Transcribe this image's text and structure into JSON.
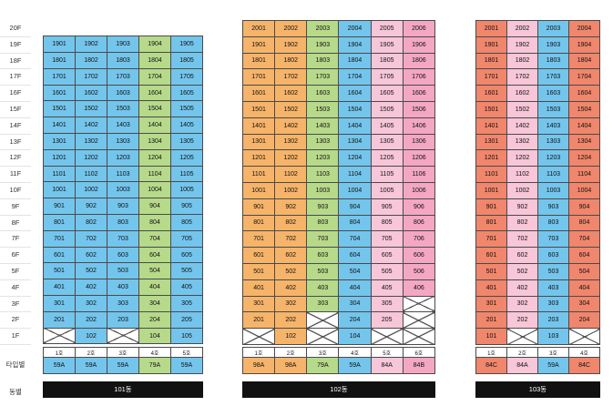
{
  "floors": [
    "20F",
    "19F",
    "18F",
    "17F",
    "16F",
    "15F",
    "14F",
    "13F",
    "12F",
    "11F",
    "10F",
    "9F",
    "8F",
    "7F",
    "6F",
    "5F",
    "4F",
    "3F",
    "2F",
    "1F"
  ],
  "side_labels": {
    "type": "타입별",
    "building": "동별"
  },
  "colors": {
    "blue": "#74c5ec",
    "green": "#b7d98a",
    "orange": "#f6b46a",
    "pink": "#f4a7c2",
    "light_pink": "#f7c6d8",
    "coral": "#f0866c",
    "bar": "#111111"
  },
  "buildings": [
    {
      "name": "101동",
      "ho": [
        "1호",
        "2호",
        "3호",
        "4호",
        "5호"
      ],
      "types": [
        "59A",
        "59A",
        "59A",
        "79A",
        "59A"
      ],
      "unit_colors": [
        "blue",
        "blue",
        "blue",
        "green",
        "blue"
      ],
      "rows": [
        {
          "floor": "20F",
          "units": [
            null,
            null,
            null,
            null,
            null
          ],
          "hidden": true
        },
        {
          "floor": "19F",
          "units": [
            "1901",
            "1902",
            "1903",
            "1904",
            "1905"
          ]
        },
        {
          "floor": "18F",
          "units": [
            "1801",
            "1802",
            "1803",
            "1804",
            "1805"
          ]
        },
        {
          "floor": "17F",
          "units": [
            "1701",
            "1702",
            "1703",
            "1704",
            "1705"
          ]
        },
        {
          "floor": "16F",
          "units": [
            "1601",
            "1602",
            "1603",
            "1604",
            "1605"
          ]
        },
        {
          "floor": "15F",
          "units": [
            "1501",
            "1502",
            "1503",
            "1504",
            "1505"
          ]
        },
        {
          "floor": "14F",
          "units": [
            "1401",
            "1402",
            "1403",
            "1404",
            "1405"
          ]
        },
        {
          "floor": "13F",
          "units": [
            "1301",
            "1302",
            "1303",
            "1304",
            "1305"
          ]
        },
        {
          "floor": "12F",
          "units": [
            "1201",
            "1202",
            "1203",
            "1204",
            "1205"
          ]
        },
        {
          "floor": "11F",
          "units": [
            "1101",
            "1102",
            "1103",
            "1104",
            "1105"
          ]
        },
        {
          "floor": "10F",
          "units": [
            "1001",
            "1002",
            "1003",
            "1004",
            "1005"
          ]
        },
        {
          "floor": "9F",
          "units": [
            "901",
            "902",
            "903",
            "904",
            "905"
          ]
        },
        {
          "floor": "8F",
          "units": [
            "801",
            "802",
            "803",
            "804",
            "805"
          ]
        },
        {
          "floor": "7F",
          "units": [
            "701",
            "702",
            "703",
            "704",
            "705"
          ]
        },
        {
          "floor": "6F",
          "units": [
            "601",
            "602",
            "603",
            "604",
            "605"
          ]
        },
        {
          "floor": "5F",
          "units": [
            "501",
            "502",
            "503",
            "504",
            "505"
          ]
        },
        {
          "floor": "4F",
          "units": [
            "401",
            "402",
            "403",
            "404",
            "405"
          ]
        },
        {
          "floor": "3F",
          "units": [
            "301",
            "302",
            "303",
            "304",
            "305"
          ]
        },
        {
          "floor": "2F",
          "units": [
            "201",
            "202",
            "203",
            "204",
            "205"
          ]
        },
        {
          "floor": "1F",
          "units": [
            "X",
            "102",
            "X",
            "104",
            "105"
          ]
        }
      ]
    },
    {
      "name": "102동",
      "ho": [
        "1호",
        "2호",
        "3호",
        "4호",
        "5호",
        "6호"
      ],
      "types": [
        "98A",
        "98A",
        "79A",
        "59A",
        "84A",
        "84B"
      ],
      "unit_colors": [
        "orange",
        "orange",
        "green",
        "blue",
        "lpink",
        "pink"
      ],
      "rows": [
        {
          "floor": "20F",
          "units": [
            "2001",
            "2002",
            "2003",
            "2004",
            "2005",
            "2006"
          ]
        },
        {
          "floor": "19F",
          "units": [
            "1901",
            "1902",
            "1903",
            "1904",
            "1905",
            "1906"
          ]
        },
        {
          "floor": "18F",
          "units": [
            "1801",
            "1802",
            "1803",
            "1804",
            "1805",
            "1806"
          ]
        },
        {
          "floor": "17F",
          "units": [
            "1701",
            "1702",
            "1703",
            "1704",
            "1705",
            "1706"
          ]
        },
        {
          "floor": "16F",
          "units": [
            "1601",
            "1602",
            "1603",
            "1604",
            "1605",
            "1606"
          ]
        },
        {
          "floor": "15F",
          "units": [
            "1501",
            "1502",
            "1503",
            "1504",
            "1505",
            "1506"
          ]
        },
        {
          "floor": "14F",
          "units": [
            "1401",
            "1402",
            "1403",
            "1404",
            "1405",
            "1406"
          ]
        },
        {
          "floor": "13F",
          "units": [
            "1301",
            "1302",
            "1303",
            "1304",
            "1305",
            "1306"
          ]
        },
        {
          "floor": "12F",
          "units": [
            "1201",
            "1202",
            "1203",
            "1204",
            "1205",
            "1206"
          ]
        },
        {
          "floor": "11F",
          "units": [
            "1101",
            "1102",
            "1103",
            "1104",
            "1105",
            "1106"
          ]
        },
        {
          "floor": "10F",
          "units": [
            "1001",
            "1002",
            "1003",
            "1004",
            "1005",
            "1006"
          ]
        },
        {
          "floor": "9F",
          "units": [
            "901",
            "902",
            "903",
            "904",
            "905",
            "906"
          ]
        },
        {
          "floor": "8F",
          "units": [
            "801",
            "802",
            "803",
            "804",
            "805",
            "806"
          ]
        },
        {
          "floor": "7F",
          "units": [
            "701",
            "702",
            "703",
            "704",
            "705",
            "706"
          ]
        },
        {
          "floor": "6F",
          "units": [
            "601",
            "602",
            "603",
            "604",
            "605",
            "606"
          ]
        },
        {
          "floor": "5F",
          "units": [
            "501",
            "502",
            "503",
            "504",
            "505",
            "506"
          ]
        },
        {
          "floor": "4F",
          "units": [
            "401",
            "402",
            "403",
            "404",
            "405",
            "406"
          ]
        },
        {
          "floor": "3F",
          "units": [
            "301",
            "302",
            "303",
            "304",
            "305",
            "X"
          ]
        },
        {
          "floor": "2F",
          "units": [
            "201",
            "202",
            "X",
            "204",
            "205",
            "X"
          ]
        },
        {
          "floor": "1F",
          "units": [
            "X",
            "102",
            "X",
            "104",
            "X",
            "X"
          ]
        }
      ]
    },
    {
      "name": "103동",
      "ho": [
        "1호",
        "2호",
        "3호",
        "4호"
      ],
      "types": [
        "84C",
        "84A",
        "59A",
        "84C"
      ],
      "unit_colors": [
        "coral",
        "lpink",
        "blue",
        "coral"
      ],
      "rows": [
        {
          "floor": "20F",
          "units": [
            "2001",
            "2002",
            "2003",
            "2004"
          ]
        },
        {
          "floor": "19F",
          "units": [
            "1901",
            "1902",
            "1903",
            "1904"
          ]
        },
        {
          "floor": "18F",
          "units": [
            "1801",
            "1802",
            "1803",
            "1804"
          ]
        },
        {
          "floor": "17F",
          "units": [
            "1701",
            "1702",
            "1703",
            "1704"
          ]
        },
        {
          "floor": "16F",
          "units": [
            "1601",
            "1602",
            "1603",
            "1604"
          ]
        },
        {
          "floor": "15F",
          "units": [
            "1501",
            "1502",
            "1503",
            "1504"
          ]
        },
        {
          "floor": "14F",
          "units": [
            "1401",
            "1402",
            "1403",
            "1404"
          ]
        },
        {
          "floor": "13F",
          "units": [
            "1301",
            "1302",
            "1303",
            "1304"
          ]
        },
        {
          "floor": "12F",
          "units": [
            "1201",
            "1202",
            "1203",
            "1204"
          ]
        },
        {
          "floor": "11F",
          "units": [
            "1101",
            "1102",
            "1103",
            "1104"
          ]
        },
        {
          "floor": "10F",
          "units": [
            "1001",
            "1002",
            "1003",
            "1004"
          ]
        },
        {
          "floor": "9F",
          "units": [
            "901",
            "902",
            "903",
            "904"
          ]
        },
        {
          "floor": "8F",
          "units": [
            "801",
            "802",
            "803",
            "804"
          ]
        },
        {
          "floor": "7F",
          "units": [
            "701",
            "702",
            "703",
            "704"
          ]
        },
        {
          "floor": "6F",
          "units": [
            "601",
            "602",
            "603",
            "604"
          ]
        },
        {
          "floor": "5F",
          "units": [
            "501",
            "502",
            "503",
            "504"
          ]
        },
        {
          "floor": "4F",
          "units": [
            "401",
            "402",
            "403",
            "404"
          ]
        },
        {
          "floor": "3F",
          "units": [
            "301",
            "302",
            "303",
            "304"
          ]
        },
        {
          "floor": "2F",
          "units": [
            "201",
            "202",
            "203",
            "204"
          ]
        },
        {
          "floor": "1F",
          "units": [
            "101",
            "X",
            "103",
            "X"
          ]
        }
      ]
    }
  ]
}
